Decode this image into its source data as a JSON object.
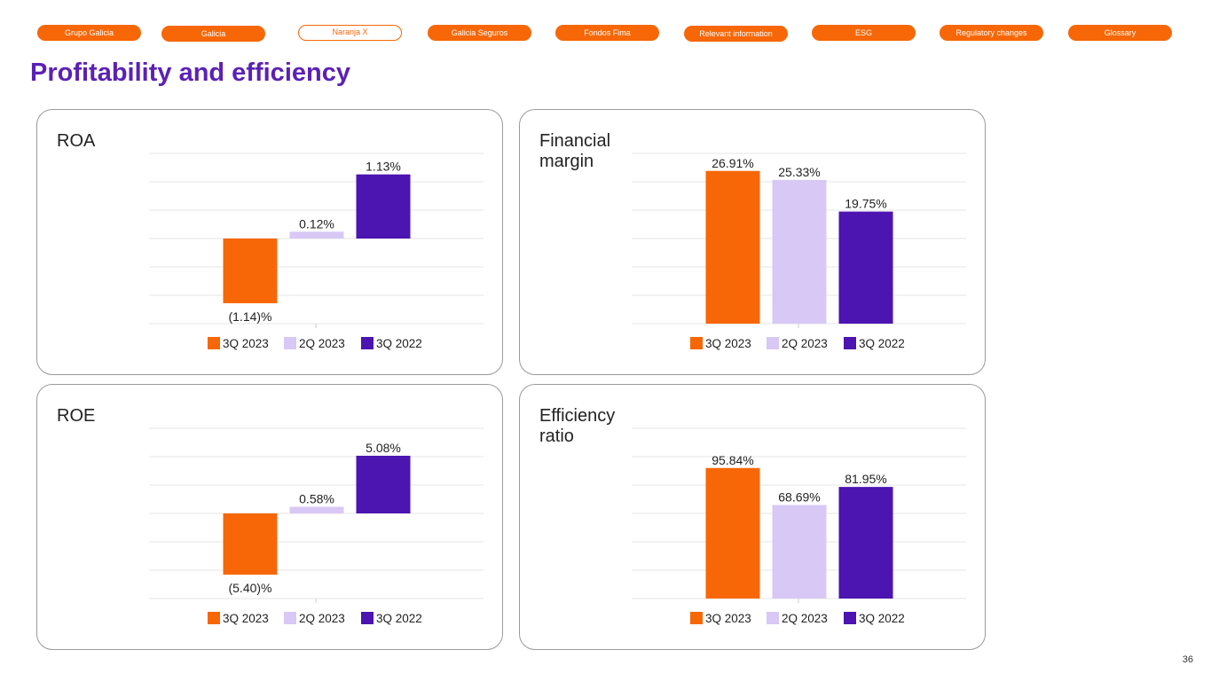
{
  "nav": {
    "items": [
      "Grupo Galicia",
      "Galicia",
      "Naranja X",
      "Galicia Seguros",
      "Fondos Fima",
      "Relevant information",
      "ESG",
      "Regulatory changes",
      "Glossary"
    ],
    "active_index": 2
  },
  "page_title": "Profitability and efficiency",
  "page_number": "36",
  "colors": {
    "accent": "#f76707",
    "series_3q2023": "#f76707",
    "series_2q2023": "#d8c8f5",
    "series_3q2022": "#4c14b0",
    "title": "#5b21b6"
  },
  "chart_data": [
    {
      "id": "roa",
      "type": "bar",
      "title": "ROA",
      "categories": [
        "3Q 2023",
        "2Q 2023",
        "3Q 2022"
      ],
      "values": [
        -1.14,
        0.12,
        1.13
      ],
      "data_labels": [
        "(1.14)%",
        "0.12%",
        "1.13%"
      ],
      "ylim": [
        -1.5,
        1.5
      ],
      "grid": true,
      "legend": "bottom"
    },
    {
      "id": "financial-margin",
      "type": "bar",
      "title": "Financial margin",
      "categories": [
        "3Q 2023",
        "2Q 2023",
        "3Q 2022"
      ],
      "values": [
        26.91,
        25.33,
        19.75
      ],
      "data_labels": [
        "26.91%",
        "25.33%",
        "19.75%"
      ],
      "ylim": [
        0,
        30
      ],
      "grid": true,
      "legend": "bottom"
    },
    {
      "id": "roe",
      "type": "bar",
      "title": "ROE",
      "categories": [
        "3Q 2023",
        "2Q 2023",
        "3Q 2022"
      ],
      "values": [
        -5.4,
        0.58,
        5.08
      ],
      "data_labels": [
        "(5.40)%",
        "0.58%",
        "5.08%"
      ],
      "ylim": [
        -7.5,
        7.5
      ],
      "grid": true,
      "legend": "bottom"
    },
    {
      "id": "efficiency-ratio",
      "type": "bar",
      "title": "Efficiency ratio",
      "categories": [
        "3Q 2023",
        "2Q 2023",
        "3Q 2022"
      ],
      "values": [
        95.84,
        68.69,
        81.95
      ],
      "data_labels": [
        "95.84%",
        "68.69%",
        "81.95%"
      ],
      "ylim": [
        0,
        125
      ],
      "grid": true,
      "legend": "bottom"
    }
  ]
}
